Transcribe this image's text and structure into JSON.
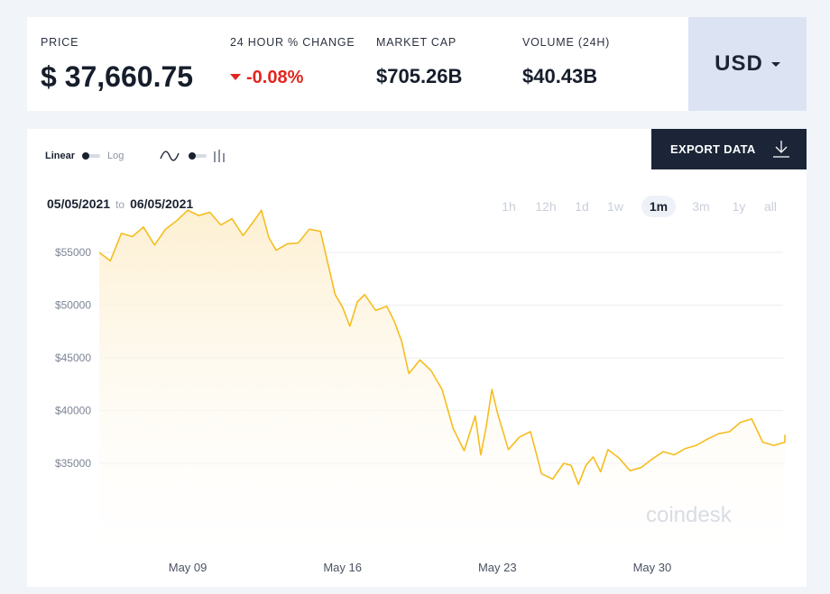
{
  "stats": {
    "price": {
      "label": "PRICE",
      "value": "$ 37,660.75"
    },
    "change": {
      "label": "24 HOUR % CHANGE",
      "value": "-0.08%"
    },
    "market_cap": {
      "label": "MARKET CAP",
      "value": "$705.26B"
    },
    "volume": {
      "label": "VOLUME (24H)",
      "value": "$40.43B"
    }
  },
  "currency": {
    "selected": "USD"
  },
  "controls": {
    "scale_linear": "Linear",
    "scale_log": "Log",
    "export_label": "EXPORT DATA"
  },
  "range": {
    "from": "05/05/2021",
    "to_word": "to",
    "to": "06/05/2021"
  },
  "periods": [
    {
      "label": "1h",
      "active": false
    },
    {
      "label": "12h",
      "active": false
    },
    {
      "label": "1d",
      "active": false
    },
    {
      "label": "1w",
      "active": false
    },
    {
      "label": "1m",
      "active": true
    },
    {
      "label": "3m",
      "active": false
    },
    {
      "label": "1y",
      "active": false
    },
    {
      "label": "all",
      "active": false
    }
  ],
  "watermark": "coindesk",
  "colors": {
    "line": "#f5bd1f",
    "area_top": "#fdf0d2",
    "negative": "#e0261f",
    "dark": "#1b2537",
    "currency_bg": "#dce3f3"
  },
  "chart_data": {
    "type": "area",
    "title": "",
    "xlabel": "",
    "ylabel": "",
    "x_range": [
      "2021-05-05",
      "2021-06-05"
    ],
    "ylim": [
      30000,
      60000
    ],
    "y_ticks": [
      {
        "value": 35000,
        "label": "$35000"
      },
      {
        "value": 40000,
        "label": "$40000"
      },
      {
        "value": 45000,
        "label": "$45000"
      },
      {
        "value": 50000,
        "label": "$50000"
      },
      {
        "value": 55000,
        "label": "$55000"
      }
    ],
    "x_ticks": [
      {
        "date": "2021-05-09",
        "label": "May 09"
      },
      {
        "date": "2021-05-16",
        "label": "May 16"
      },
      {
        "date": "2021-05-23",
        "label": "May 23"
      },
      {
        "date": "2021-05-30",
        "label": "May 30"
      }
    ],
    "grid": "horizontal",
    "series": [
      {
        "values": [
          [
            "2021-05-05",
            55000
          ],
          [
            "2021-05-05",
            54200
          ],
          [
            "2021-05-06",
            56800
          ],
          [
            "2021-05-06",
            56500
          ],
          [
            "2021-05-07",
            57400
          ],
          [
            "2021-05-07",
            55700
          ],
          [
            "2021-05-08",
            57200
          ],
          [
            "2021-05-08",
            58000
          ],
          [
            "2021-05-09",
            59000
          ],
          [
            "2021-05-09",
            58500
          ],
          [
            "2021-05-10",
            58800
          ],
          [
            "2021-05-10",
            57600
          ],
          [
            "2021-05-11",
            58200
          ],
          [
            "2021-05-11",
            56600
          ],
          [
            "2021-05-12",
            58000
          ],
          [
            "2021-05-12",
            59000
          ],
          [
            "2021-05-12",
            56400
          ],
          [
            "2021-05-13",
            55200
          ],
          [
            "2021-05-13",
            55800
          ],
          [
            "2021-05-14",
            55900
          ],
          [
            "2021-05-14",
            57200
          ],
          [
            "2021-05-15",
            57000
          ],
          [
            "2021-05-15",
            54000
          ],
          [
            "2021-05-15",
            51000
          ],
          [
            "2021-05-16",
            49800
          ],
          [
            "2021-05-16",
            48000
          ],
          [
            "2021-05-16",
            50300
          ],
          [
            "2021-05-17",
            51000
          ],
          [
            "2021-05-17",
            49500
          ],
          [
            "2021-05-18",
            49900
          ],
          [
            "2021-05-18",
            48500
          ],
          [
            "2021-05-18",
            46600
          ],
          [
            "2021-05-19",
            43500
          ],
          [
            "2021-05-19",
            44800
          ],
          [
            "2021-05-20",
            43800
          ],
          [
            "2021-05-20",
            42000
          ],
          [
            "2021-05-21",
            38300
          ],
          [
            "2021-05-21",
            36200
          ],
          [
            "2021-05-22",
            39500
          ],
          [
            "2021-05-22",
            35800
          ],
          [
            "2021-05-22",
            38500
          ],
          [
            "2021-05-22",
            42000
          ],
          [
            "2021-05-23",
            39800
          ],
          [
            "2021-05-23",
            36300
          ],
          [
            "2021-05-24",
            37500
          ],
          [
            "2021-05-24",
            38000
          ],
          [
            "2021-05-25",
            34000
          ],
          [
            "2021-05-25",
            33500
          ],
          [
            "2021-05-26",
            35000
          ],
          [
            "2021-05-26",
            34800
          ],
          [
            "2021-05-26",
            33000
          ],
          [
            "2021-05-27",
            34800
          ],
          [
            "2021-05-27",
            35600
          ],
          [
            "2021-05-27",
            34200
          ],
          [
            "2021-05-28",
            36300
          ],
          [
            "2021-05-28",
            35500
          ],
          [
            "2021-05-29",
            34300
          ],
          [
            "2021-05-29",
            34600
          ],
          [
            "2021-05-30",
            35400
          ],
          [
            "2021-05-30",
            36100
          ],
          [
            "2021-05-31",
            35800
          ],
          [
            "2021-05-31",
            36400
          ],
          [
            "2021-06-01",
            36700
          ],
          [
            "2021-06-01",
            37300
          ],
          [
            "2021-06-02",
            37800
          ],
          [
            "2021-06-02",
            38000
          ],
          [
            "2021-06-03",
            38900
          ],
          [
            "2021-06-03",
            39200
          ],
          [
            "2021-06-04",
            37000
          ],
          [
            "2021-06-04",
            36700
          ],
          [
            "2021-06-05",
            37000
          ],
          [
            "2021-06-05",
            37700
          ]
        ]
      }
    ]
  }
}
